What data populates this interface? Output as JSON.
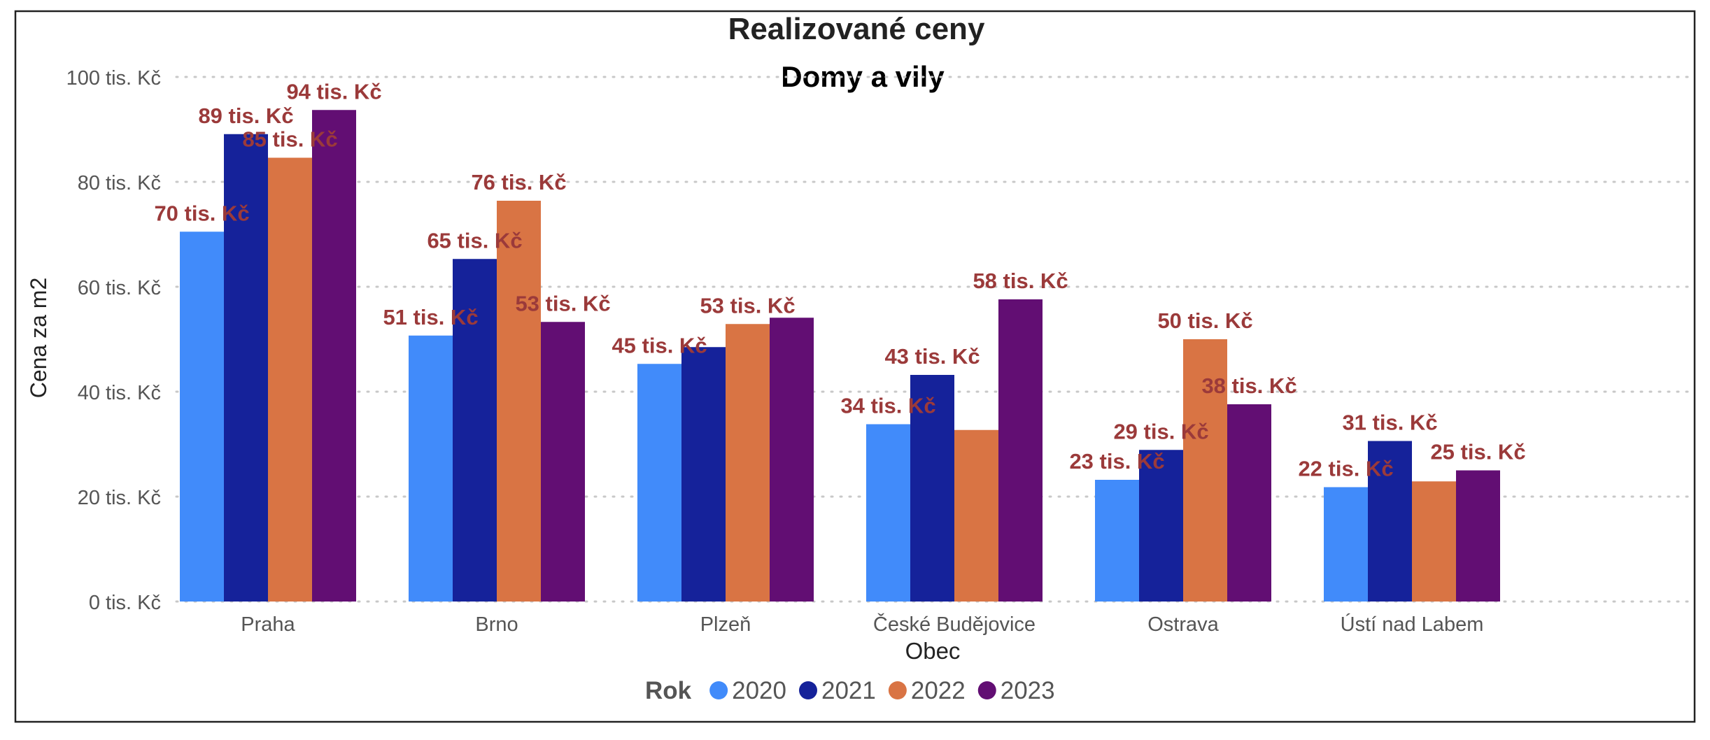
{
  "chart_data": {
    "type": "bar",
    "title": "Realizované ceny",
    "subtitle": "Domy a vily",
    "xlabel": "Obec",
    "ylabel": "Cena za m2",
    "categories": [
      "Praha",
      "Brno",
      "Plzeň",
      "České Budějovice",
      "Ostrava",
      "Ústí nad Labem"
    ],
    "series": [
      {
        "name": "2020",
        "color": "#418bfa",
        "values": [
          70.5,
          50.7,
          45.3,
          33.8,
          23.2,
          21.8
        ],
        "labels": [
          "70 tis. Kč",
          "51 tis. Kč",
          "45 tis. Kč",
          "34 tis. Kč",
          "23 tis. Kč",
          "22 tis. Kč"
        ]
      },
      {
        "name": "2021",
        "color": "#15229a",
        "values": [
          89.1,
          65.3,
          48.5,
          43.2,
          28.9,
          30.6
        ],
        "labels": [
          "89 tis. Kč",
          "65 tis. Kč",
          "",
          "43 tis. Kč",
          "29 tis. Kč",
          "31 tis. Kč"
        ]
      },
      {
        "name": "2022",
        "color": "#d97444",
        "values": [
          84.6,
          76.4,
          52.9,
          32.7,
          50.0,
          22.9
        ],
        "labels": [
          "85 tis. Kč",
          "76 tis. Kč",
          "53 tis. Kč",
          "",
          "50 tis. Kč",
          ""
        ]
      },
      {
        "name": "2023",
        "color": "#620e73",
        "values": [
          93.7,
          53.3,
          54.1,
          57.6,
          37.6,
          25.0
        ],
        "labels": [
          "94 tis. Kč",
          "53 tis. Kč",
          "",
          "58 tis. Kč",
          "38 tis. Kč",
          "25 tis. Kč"
        ]
      }
    ],
    "ylim": [
      0,
      100
    ],
    "yticks": [
      0,
      20,
      40,
      60,
      80,
      100
    ],
    "ytick_labels": [
      "0 tis. Kč",
      "20 tis. Kč",
      "40 tis. Kč",
      "60 tis. Kč",
      "80 tis. Kč",
      "100 tis. Kč"
    ],
    "grid": true,
    "legend": {
      "title": "Rok",
      "placement": "bottom-center"
    },
    "label_color": "#9b3a3a"
  }
}
